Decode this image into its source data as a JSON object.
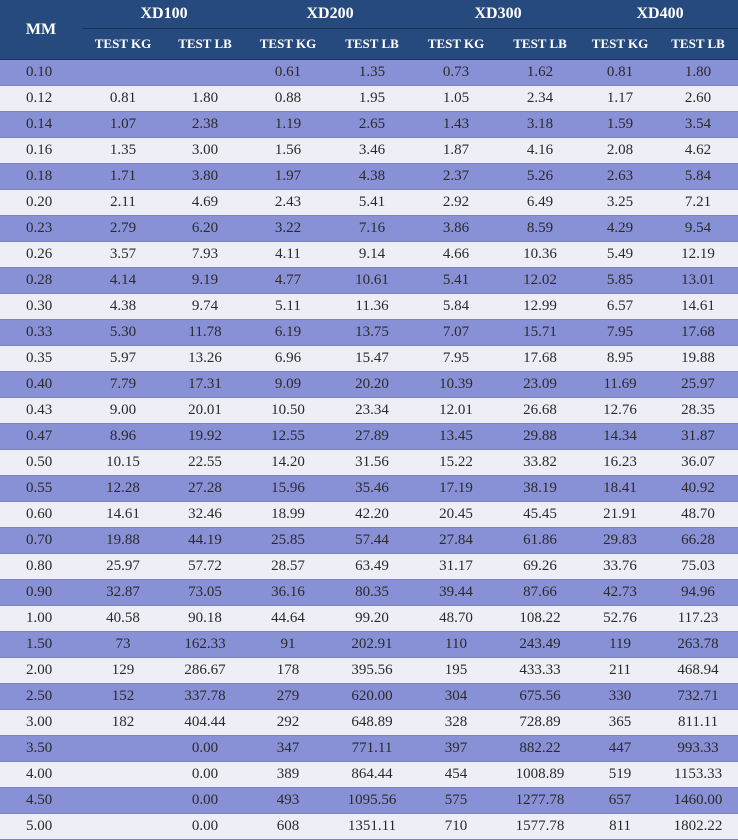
{
  "header": {
    "mm_label": "MM",
    "groups": [
      "XD100",
      "XD200",
      "XD300",
      "XD400"
    ],
    "sub_kg": "TEST KG",
    "sub_lb": "TEST LB"
  },
  "rows": [
    [
      "0.10",
      "",
      "",
      "0.61",
      "1.35",
      "0.73",
      "1.62",
      "0.81",
      "1.80"
    ],
    [
      "0.12",
      "0.81",
      "1.80",
      "0.88",
      "1.95",
      "1.05",
      "2.34",
      "1.17",
      "2.60"
    ],
    [
      "0.14",
      "1.07",
      "2.38",
      "1.19",
      "2.65",
      "1.43",
      "3.18",
      "1.59",
      "3.54"
    ],
    [
      "0.16",
      "1.35",
      "3.00",
      "1.56",
      "3.46",
      "1.87",
      "4.16",
      "2.08",
      "4.62"
    ],
    [
      "0.18",
      "1.71",
      "3.80",
      "1.97",
      "4.38",
      "2.37",
      "5.26",
      "2.63",
      "5.84"
    ],
    [
      "0.20",
      "2.11",
      "4.69",
      "2.43",
      "5.41",
      "2.92",
      "6.49",
      "3.25",
      "7.21"
    ],
    [
      "0.23",
      "2.79",
      "6.20",
      "3.22",
      "7.16",
      "3.86",
      "8.59",
      "4.29",
      "9.54"
    ],
    [
      "0.26",
      "3.57",
      "7.93",
      "4.11",
      "9.14",
      "4.66",
      "10.36",
      "5.49",
      "12.19"
    ],
    [
      "0.28",
      "4.14",
      "9.19",
      "4.77",
      "10.61",
      "5.41",
      "12.02",
      "5.85",
      "13.01"
    ],
    [
      "0.30",
      "4.38",
      "9.74",
      "5.11",
      "11.36",
      "5.84",
      "12.99",
      "6.57",
      "14.61"
    ],
    [
      "0.33",
      "5.30",
      "11.78",
      "6.19",
      "13.75",
      "7.07",
      "15.71",
      "7.95",
      "17.68"
    ],
    [
      "0.35",
      "5.97",
      "13.26",
      "6.96",
      "15.47",
      "7.95",
      "17.68",
      "8.95",
      "19.88"
    ],
    [
      "0.40",
      "7.79",
      "17.31",
      "9.09",
      "20.20",
      "10.39",
      "23.09",
      "11.69",
      "25.97"
    ],
    [
      "0.43",
      "9.00",
      "20.01",
      "10.50",
      "23.34",
      "12.01",
      "26.68",
      "12.76",
      "28.35"
    ],
    [
      "0.47",
      "8.96",
      "19.92",
      "12.55",
      "27.89",
      "13.45",
      "29.88",
      "14.34",
      "31.87"
    ],
    [
      "0.50",
      "10.15",
      "22.55",
      "14.20",
      "31.56",
      "15.22",
      "33.82",
      "16.23",
      "36.07"
    ],
    [
      "0.55",
      "12.28",
      "27.28",
      "15.96",
      "35.46",
      "17.19",
      "38.19",
      "18.41",
      "40.92"
    ],
    [
      "0.60",
      "14.61",
      "32.46",
      "18.99",
      "42.20",
      "20.45",
      "45.45",
      "21.91",
      "48.70"
    ],
    [
      "0.70",
      "19.88",
      "44.19",
      "25.85",
      "57.44",
      "27.84",
      "61.86",
      "29.83",
      "66.28"
    ],
    [
      "0.80",
      "25.97",
      "57.72",
      "28.57",
      "63.49",
      "31.17",
      "69.26",
      "33.76",
      "75.03"
    ],
    [
      "0.90",
      "32.87",
      "73.05",
      "36.16",
      "80.35",
      "39.44",
      "87.66",
      "42.73",
      "94.96"
    ],
    [
      "1.00",
      "40.58",
      "90.18",
      "44.64",
      "99.20",
      "48.70",
      "108.22",
      "52.76",
      "117.23"
    ],
    [
      "1.50",
      "73",
      "162.33",
      "91",
      "202.91",
      "110",
      "243.49",
      "119",
      "263.78"
    ],
    [
      "2.00",
      "129",
      "286.67",
      "178",
      "395.56",
      "195",
      "433.33",
      "211",
      "468.94"
    ],
    [
      "2.50",
      "152",
      "337.78",
      "279",
      "620.00",
      "304",
      "675.56",
      "330",
      "732.71"
    ],
    [
      "3.00",
      "182",
      "404.44",
      "292",
      "648.89",
      "328",
      "728.89",
      "365",
      "811.11"
    ],
    [
      "3.50",
      "",
      "0.00",
      "347",
      "771.11",
      "397",
      "882.22",
      "447",
      "993.33"
    ],
    [
      "4.00",
      "",
      "0.00",
      "389",
      "864.44",
      "454",
      "1008.89",
      "519",
      "1153.33"
    ],
    [
      "4.50",
      "",
      "0.00",
      "493",
      "1095.56",
      "575",
      "1277.78",
      "657",
      "1460.00"
    ],
    [
      "5.00",
      "",
      "0.00",
      "608",
      "1351.11",
      "710",
      "1577.78",
      "811",
      "1802.22"
    ]
  ]
}
